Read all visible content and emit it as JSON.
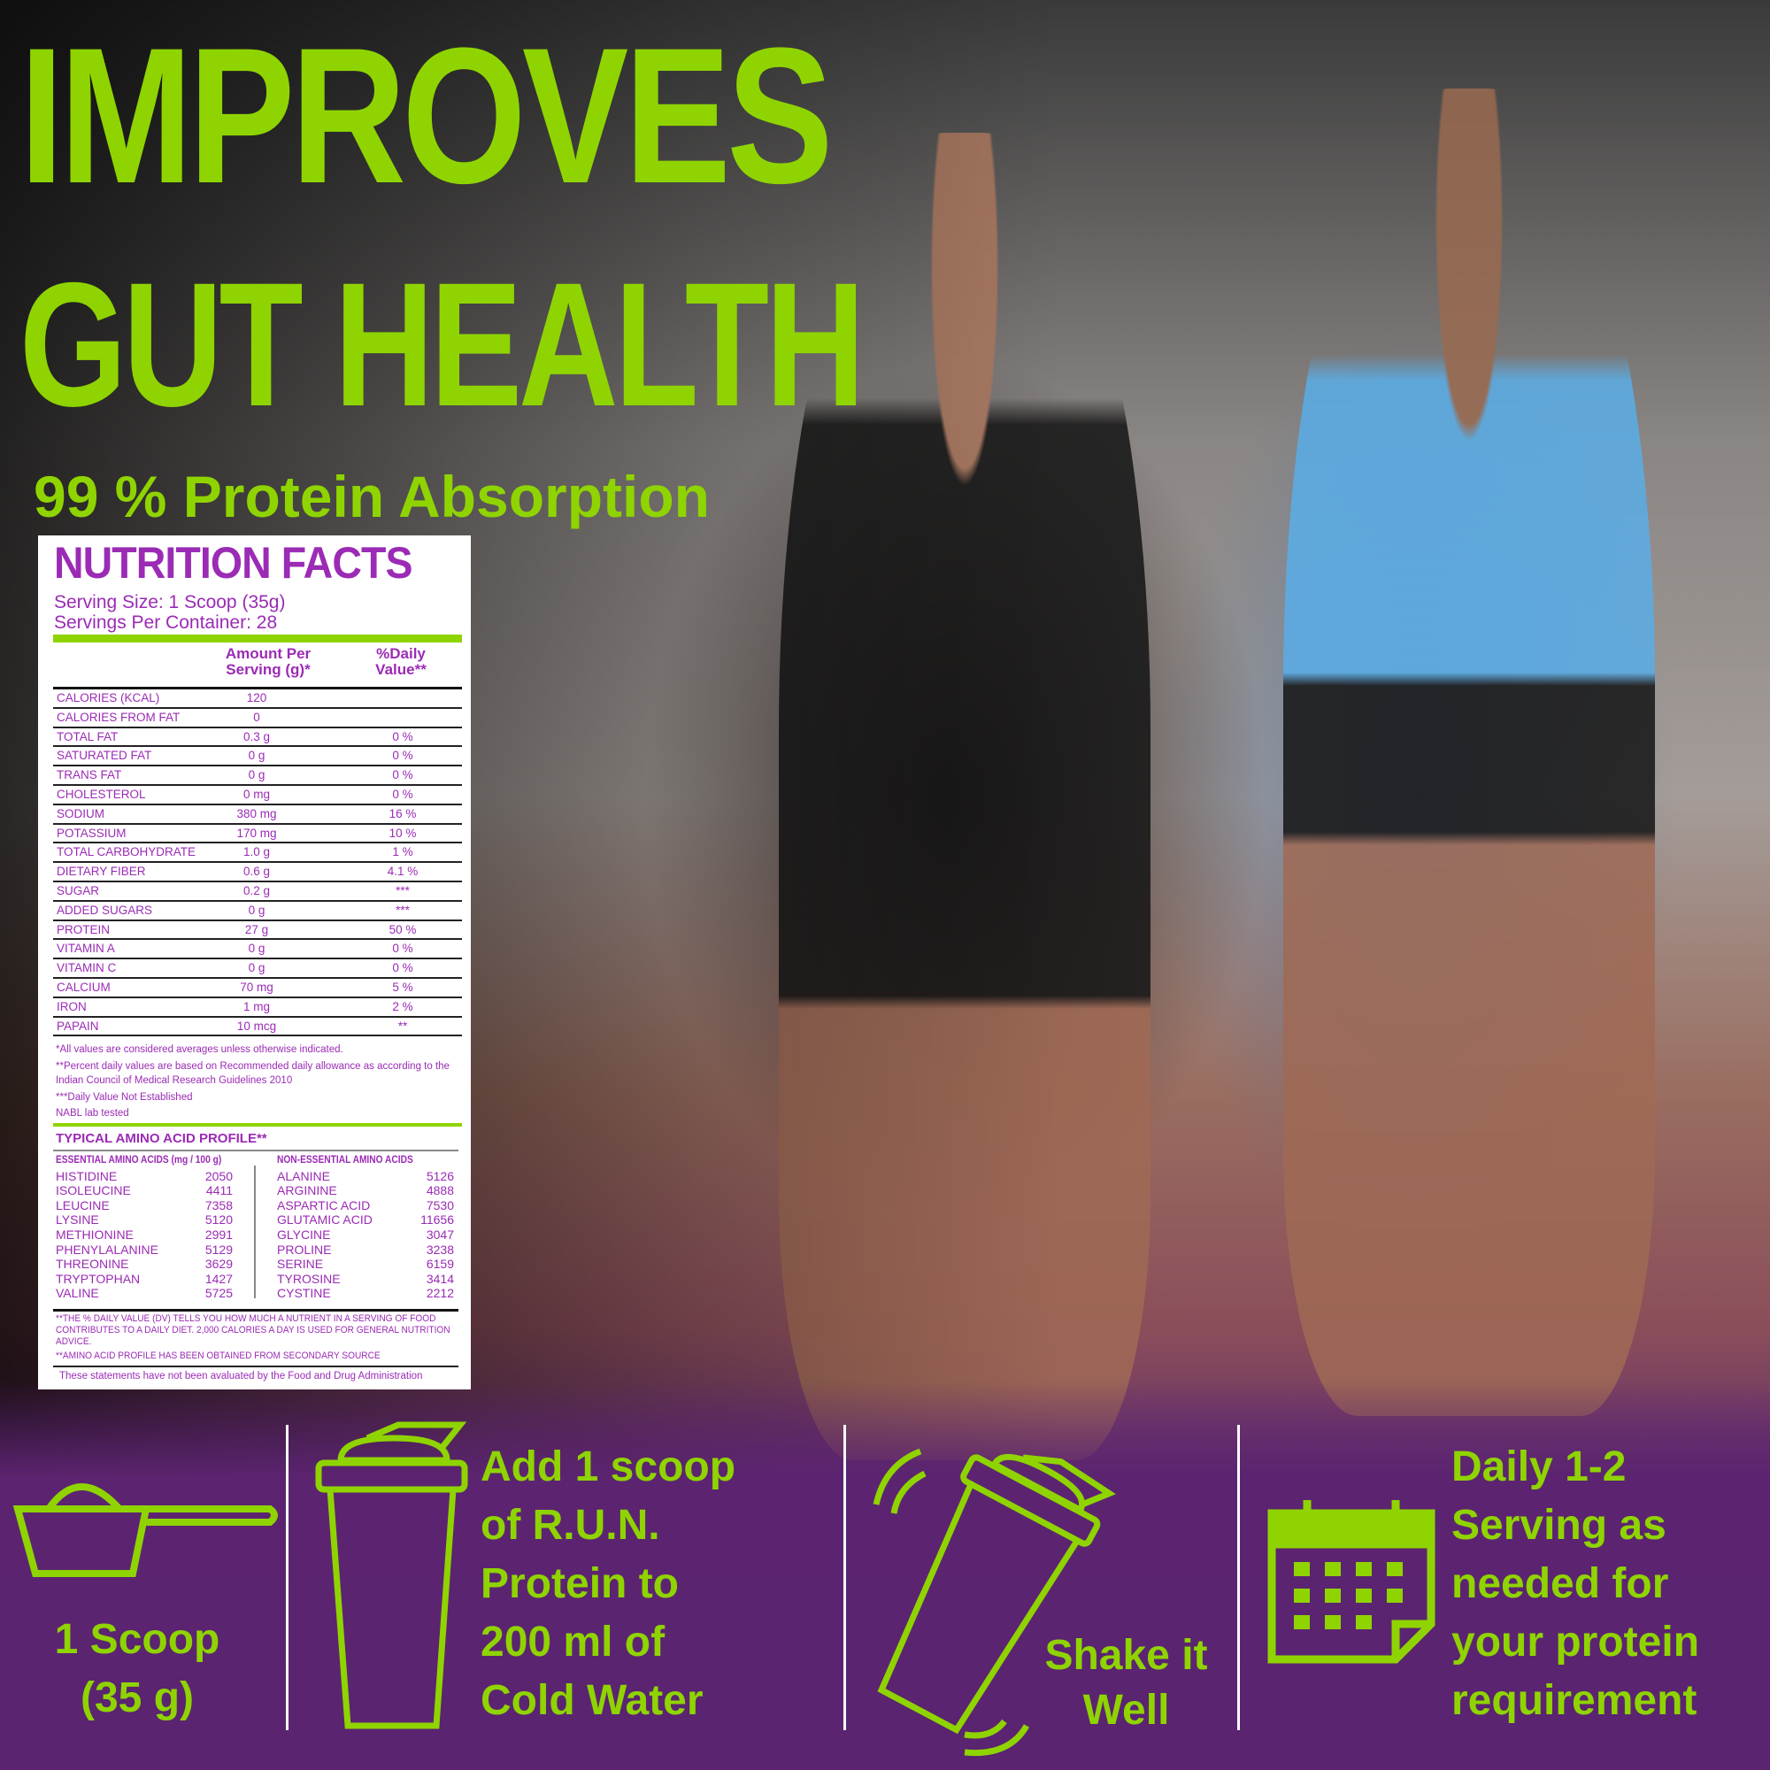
{
  "headline": {
    "line1": "IMPROVES",
    "line2": "GUT HEALTH",
    "subtitle": "99 % Protein Absorption"
  },
  "colors": {
    "accent_green": "#8fd400",
    "brand_purple": "#9b2bb5",
    "band_purple": "#5a2470"
  },
  "nutrition": {
    "title": "NUTRITION FACTS",
    "serving_size": "Serving Size:  1 Scoop (35g)",
    "servings_per_container": "Servings Per Container: 28",
    "col_amount": "Amount Per Serving (g)*",
    "col_dv": "%Daily Value**",
    "rows": [
      {
        "name": "CALORIES (KCAL)",
        "amount": "120",
        "dv": ""
      },
      {
        "name": "CALORIES FROM FAT",
        "amount": "0",
        "dv": ""
      },
      {
        "name": "TOTAL FAT",
        "amount": "0.3 g",
        "dv": "0 %"
      },
      {
        "name": "SATURATED FAT",
        "amount": "0 g",
        "dv": "0 %"
      },
      {
        "name": "TRANS FAT",
        "amount": "0 g",
        "dv": "0 %"
      },
      {
        "name": "CHOLESTEROL",
        "amount": "0 mg",
        "dv": "0 %"
      },
      {
        "name": "SODIUM",
        "amount": "380 mg",
        "dv": "16 %"
      },
      {
        "name": "POTASSIUM",
        "amount": "170 mg",
        "dv": "10 %"
      },
      {
        "name": "TOTAL CARBOHYDRATE",
        "amount": "1.0 g",
        "dv": "1 %"
      },
      {
        "name": "DIETARY FIBER",
        "amount": "0.6 g",
        "dv": "4.1 %"
      },
      {
        "name": "SUGAR",
        "amount": "0.2 g",
        "dv": "***"
      },
      {
        "name": "ADDED SUGARS",
        "amount": "0 g",
        "dv": "***"
      },
      {
        "name": "PROTEIN",
        "amount": "27 g",
        "dv": "50 %"
      },
      {
        "name": "VITAMIN A",
        "amount": "0 g",
        "dv": "0 %"
      },
      {
        "name": "VITAMIN C",
        "amount": "0 g",
        "dv": "0 %"
      },
      {
        "name": "CALCIUM",
        "amount": "70 mg",
        "dv": "5 %"
      },
      {
        "name": "IRON",
        "amount": "1 mg",
        "dv": "2 %"
      },
      {
        "name": "PAPAIN",
        "amount": "10 mcg",
        "dv": "**"
      }
    ],
    "note1": "*All values are considered averages unless otherwise indicated.",
    "note2": "**Percent daily values are based on Recommended daily allowance as according to the Indian Council of Medical Research Guidelines 2010",
    "note3": "***Daily Value Not Established",
    "note4": "NABL lab tested",
    "amino_title": "TYPICAL AMINO ACID PROFILE**",
    "essential_header": "ESSENTIAL AMINO ACIDS (mg / 100 g)",
    "essential": [
      [
        "HISTIDINE",
        "2050"
      ],
      [
        "ISOLEUCINE",
        "4411"
      ],
      [
        "LEUCINE",
        "7358"
      ],
      [
        "LYSINE",
        "5120"
      ],
      [
        "METHIONINE",
        "2991"
      ],
      [
        "PHENYLALANINE",
        "5129"
      ],
      [
        "THREONINE",
        "3629"
      ],
      [
        "TRYPTOPHAN",
        "1427"
      ],
      [
        "VALINE",
        "5725"
      ]
    ],
    "nonessential_header": "NON-ESSENTIAL AMINO ACIDS",
    "nonessential": [
      [
        "ALANINE",
        "5126"
      ],
      [
        "ARGININE",
        "4888"
      ],
      [
        "ASPARTIC ACID",
        "7530"
      ],
      [
        "GLUTAMIC ACID",
        "11656"
      ],
      [
        "GLYCINE",
        "3047"
      ],
      [
        "PROLINE",
        "3238"
      ],
      [
        "SERINE",
        "6159"
      ],
      [
        "TYROSINE",
        "3414"
      ],
      [
        "CYSTINE",
        "2212"
      ]
    ],
    "dv_note": "**THE % DAILY VALUE (DV) TELLS YOU HOW MUCH A NUTRIENT IN A SERVING OF FOOD CONTRIBUTES TO A DAILY DIET. 2,000 CALORIES A DAY IS USED FOR GENERAL NUTRITION ADVICE.",
    "amino_note": "**AMINO ACID PROFILE HAS BEEN OBTAINED FROM SECONDARY SOURCE",
    "fda_note": "These statements have not been avaluated by the Food and Drug Administration"
  },
  "steps": [
    {
      "icon": "scoop-icon",
      "text": [
        "1 Scoop",
        "(35 g)"
      ]
    },
    {
      "icon": "shaker-bottle-icon",
      "text": [
        "Add 1 scoop",
        "of R.U.N.",
        "Protein to",
        "200 ml of",
        "Cold Water"
      ]
    },
    {
      "icon": "shaking-bottle-icon",
      "text": [
        "Shake it",
        "Well"
      ]
    },
    {
      "icon": "calendar-icon",
      "text": [
        "Daily 1-2",
        "Serving as",
        "needed for",
        "your protein",
        "requirement"
      ]
    }
  ]
}
